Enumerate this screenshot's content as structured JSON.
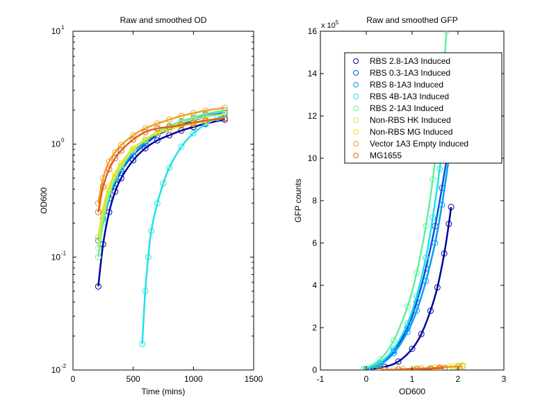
{
  "chart_data": [
    {
      "type": "line",
      "title": "Raw and smoothed OD",
      "xlabel": "Time (mins)",
      "ylabel": "OD600",
      "xlim": [
        0,
        1500
      ],
      "ylim": [
        0.01,
        10
      ],
      "yscale": "log",
      "xticks": [
        "0",
        "500",
        "1000",
        "1500"
      ],
      "xtick_values": [
        0,
        500,
        1000,
        1500
      ],
      "yticks": [
        {
          "base": "10",
          "exp": "-2"
        },
        {
          "base": "10",
          "exp": "-1"
        },
        {
          "base": "10",
          "exp": "0"
        },
        {
          "base": "10",
          "exp": "1"
        }
      ],
      "ytick_values": [
        0.01,
        0.1,
        1,
        10
      ],
      "grid": false,
      "series": [
        {
          "color": "#0000A0",
          "x": [
            210,
            250,
            300,
            350,
            400,
            500,
            600,
            700,
            800,
            900,
            1000,
            1100,
            1260
          ],
          "y": [
            0.055,
            0.13,
            0.25,
            0.38,
            0.5,
            0.72,
            0.92,
            1.08,
            1.2,
            1.32,
            1.42,
            1.52,
            1.65
          ]
        },
        {
          "color": "#0050E0",
          "x": [
            210,
            250,
            300,
            350,
            400,
            500,
            600,
            700,
            800,
            900,
            1000,
            1100,
            1260
          ],
          "y": [
            0.15,
            0.2,
            0.33,
            0.45,
            0.58,
            0.8,
            1.0,
            1.2,
            1.35,
            1.5,
            1.62,
            1.75,
            1.9
          ]
        },
        {
          "color": "#00A0F0",
          "x": [
            210,
            250,
            300,
            350,
            400,
            500,
            600,
            700,
            800,
            900,
            1000,
            1100,
            1260
          ],
          "y": [
            0.14,
            0.22,
            0.35,
            0.48,
            0.6,
            0.85,
            1.05,
            1.25,
            1.42,
            1.57,
            1.7,
            1.82,
            2.0
          ]
        },
        {
          "color": "#20E0E8",
          "x": [
            575,
            600,
            625,
            650,
            700,
            750,
            800,
            900,
            1000,
            1100,
            1200,
            1260
          ],
          "y": [
            0.017,
            0.05,
            0.1,
            0.17,
            0.3,
            0.45,
            0.62,
            0.95,
            1.25,
            1.5,
            1.7,
            1.8
          ]
        },
        {
          "color": "#60F0A0",
          "x": [
            210,
            250,
            300,
            350,
            400,
            500,
            600,
            700,
            800,
            900,
            1000,
            1100,
            1260
          ],
          "y": [
            0.1,
            0.2,
            0.35,
            0.5,
            0.62,
            0.88,
            1.08,
            1.28,
            1.45,
            1.6,
            1.72,
            1.85,
            2.0
          ]
        },
        {
          "color": "#B0F070",
          "x": [
            210,
            250,
            300,
            350,
            400,
            500,
            600,
            700,
            800,
            900,
            1000,
            1100,
            1260
          ],
          "y": [
            0.12,
            0.24,
            0.38,
            0.52,
            0.65,
            0.9,
            1.1,
            1.28,
            1.42,
            1.55,
            1.65,
            1.75,
            1.85
          ]
        },
        {
          "color": "#F0E020",
          "x": [
            210,
            250,
            300,
            350,
            400,
            500,
            600,
            700,
            800,
            900,
            1000,
            1100,
            1260
          ],
          "y": [
            0.15,
            0.27,
            0.42,
            0.55,
            0.68,
            0.92,
            1.1,
            1.25,
            1.35,
            1.45,
            1.52,
            1.6,
            1.7
          ]
        },
        {
          "color": "#F0A020",
          "x": [
            210,
            250,
            300,
            350,
            400,
            500,
            600,
            700,
            800,
            900,
            1000,
            1100,
            1260
          ],
          "y": [
            0.3,
            0.5,
            0.7,
            0.85,
            0.98,
            1.2,
            1.38,
            1.52,
            1.65,
            1.78,
            1.88,
            1.98,
            2.1
          ]
        },
        {
          "color": "#E06020",
          "x": [
            210,
            250,
            300,
            350,
            400,
            500,
            600,
            700,
            800,
            900,
            1000,
            1100,
            1260
          ],
          "y": [
            0.25,
            0.42,
            0.6,
            0.75,
            0.88,
            1.1,
            1.28,
            1.38,
            1.42,
            1.48,
            1.55,
            1.62,
            1.7
          ]
        }
      ]
    },
    {
      "type": "line",
      "title": "Raw and smoothed GFP",
      "xlabel": "OD600",
      "ylabel": "GFP counts",
      "xlim": [
        -1,
        3
      ],
      "ylim": [
        0,
        16
      ],
      "y_multiplier": {
        "base": "x 10",
        "exp": "5"
      },
      "xticks": [
        "-1",
        "0",
        "1",
        "2",
        "3"
      ],
      "xtick_values": [
        -1,
        0,
        1,
        2,
        3
      ],
      "yticks": [
        "0",
        "2",
        "4",
        "6",
        "8",
        "10",
        "12",
        "14",
        "16"
      ],
      "ytick_values": [
        0,
        2,
        4,
        6,
        8,
        10,
        12,
        14,
        16
      ],
      "grid": false,
      "legend_position": "top-right",
      "series": [
        {
          "name": "RBS 2.8-1A3 Induced",
          "color": "#0000A0",
          "x": [
            0.1,
            0.4,
            0.7,
            1.0,
            1.2,
            1.4,
            1.55,
            1.7,
            1.8,
            1.85
          ],
          "y": [
            0.05,
            0.15,
            0.4,
            1.0,
            1.7,
            2.8,
            3.9,
            5.5,
            6.9,
            7.7
          ]
        },
        {
          "name": "RBS 0.3-1A3 Induced",
          "color": "#0050E0",
          "x": [
            0,
            0.3,
            0.6,
            0.9,
            1.1,
            1.3,
            1.5,
            1.65,
            1.8,
            1.9
          ],
          "y": [
            0.05,
            0.3,
            0.9,
            2.0,
            3.2,
            4.8,
            6.8,
            8.6,
            10.6,
            12
          ]
        },
        {
          "name": "RBS 8-1A3 Induced",
          "color": "#00A0F0",
          "x": [
            0,
            0.3,
            0.6,
            0.9,
            1.1,
            1.3,
            1.5,
            1.65,
            1.8,
            1.95
          ],
          "y": [
            0.05,
            0.25,
            0.8,
            1.8,
            2.8,
            4.2,
            6.0,
            7.8,
            10,
            12.5
          ]
        },
        {
          "name": "RBS 4B-1A3 Induced",
          "color": "#20E0E8",
          "x": [
            -0.05,
            0.3,
            0.6,
            0.9,
            1.1,
            1.3,
            1.45,
            1.6,
            1.7,
            1.8
          ],
          "y": [
            0.05,
            0.35,
            1.0,
            2.2,
            3.5,
            5.3,
            7.2,
            9.5,
            11.5,
            14
          ]
        },
        {
          "name": "RBS 2-1A3 Induced",
          "color": "#60F0A0",
          "x": [
            -0.05,
            0.3,
            0.6,
            0.9,
            1.1,
            1.3,
            1.45,
            1.6,
            1.7,
            1.75
          ],
          "y": [
            0.05,
            0.5,
            1.4,
            3.0,
            4.6,
            6.8,
            9.0,
            11.8,
            14.5,
            16
          ]
        },
        {
          "name": "Non-RBS HK Induced",
          "color": "#B0F070",
          "x": [
            0.2,
            0.6,
            1.0,
            1.4,
            1.8,
            2.0
          ],
          "y": [
            0,
            0.03,
            0.06,
            0.1,
            0.15,
            0.2
          ]
        },
        {
          "name": "Non-RBS MG Induced",
          "color": "#F0E020",
          "x": [
            0.3,
            0.7,
            1.1,
            1.5,
            1.9,
            2.1
          ],
          "y": [
            0,
            0.03,
            0.07,
            0.12,
            0.18,
            0.22
          ]
        },
        {
          "name": "Vector 1A3 Empty Induced",
          "color": "#F0A020",
          "x": [
            0.4,
            0.8,
            1.2,
            1.6,
            2.0,
            2.1
          ],
          "y": [
            0,
            0.04,
            0.08,
            0.12,
            0.16,
            0.18
          ]
        },
        {
          "name": "MG1655",
          "color": "#E06020",
          "x": [
            0.3,
            0.7,
            1.1,
            1.4,
            1.6,
            1.7
          ],
          "y": [
            0,
            0.02,
            0.04,
            0.06,
            0.08,
            0.1
          ]
        }
      ]
    }
  ]
}
